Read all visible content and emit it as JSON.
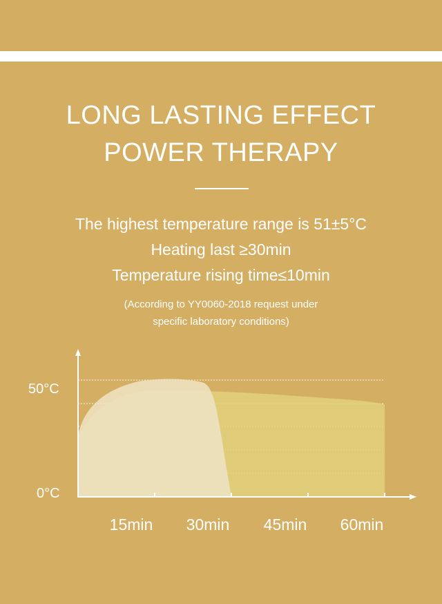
{
  "header": {
    "title_line_1": "LONG LASTING EFFECT",
    "title_line_2": "POWER THERAPY"
  },
  "specs": {
    "line_1": "The highest temperature range is 51±5°C",
    "line_2": "Heating last ≥30min",
    "line_3": "Temperature rising time≤10min"
  },
  "note": {
    "line_1": "(According to YY0060-2018 request under",
    "line_2": "specific laboratory conditions)"
  },
  "colors": {
    "background": "#d4ae62",
    "text": "#ffffff",
    "long_curve_fill": "#e0d07c",
    "short_curve_fill": "#efe4c6"
  },
  "chart_data": {
    "type": "area",
    "y_tick_labels": [
      "50°C",
      "0°C"
    ],
    "x_tick_labels": [
      "15min",
      "30min",
      "45min",
      "60min"
    ],
    "grid": "dotted horizontal",
    "legend": "none"
  }
}
